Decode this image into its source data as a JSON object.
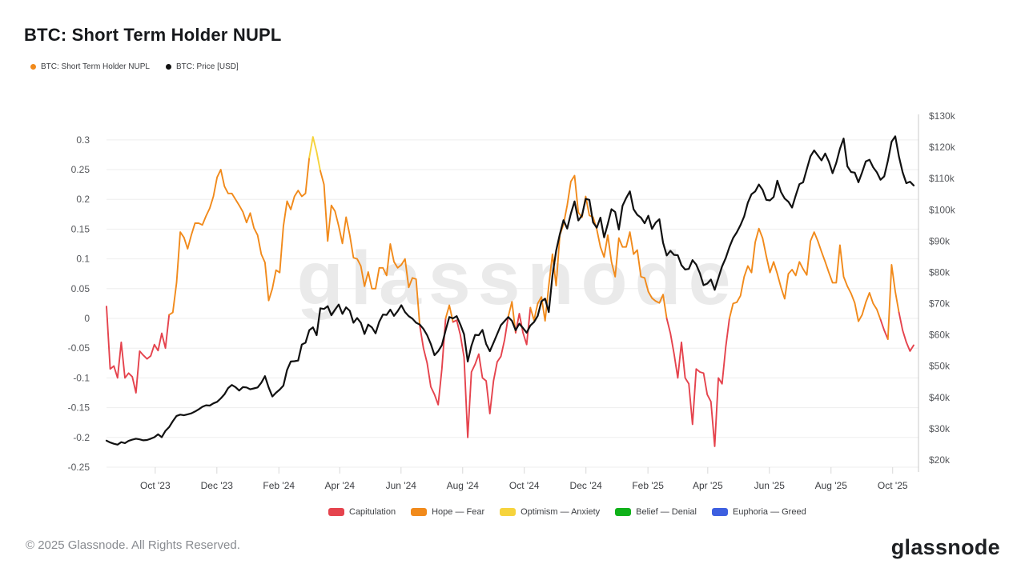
{
  "title": "BTC: Short Term Holder NUPL",
  "top_legend": [
    {
      "label": "BTC: Short Term Holder NUPL",
      "color": "#f18a1b"
    },
    {
      "label": "BTC: Price [USD]",
      "color": "#111111"
    }
  ],
  "bottom_legend": [
    {
      "label": "Capitulation",
      "color": "#e5434d"
    },
    {
      "label": "Hope — Fear",
      "color": "#f18a1b"
    },
    {
      "label": "Optimism — Anxiety",
      "color": "#f6d33c"
    },
    {
      "label": "Belief — Denial",
      "color": "#0fb119"
    },
    {
      "label": "Euphoria — Greed",
      "color": "#3d5fe0"
    }
  ],
  "watermark": "glassnode",
  "footer": "© 2025 Glassnode. All Rights Reserved.",
  "logo_text": "glassnode",
  "chart_data": {
    "type": "line",
    "x_axis": {
      "t_min": 2023.618,
      "t_max": 2025.805,
      "ticks": [
        {
          "t": 2023.75,
          "label": "Oct '23"
        },
        {
          "t": 2023.917,
          "label": "Dec '23"
        },
        {
          "t": 2024.085,
          "label": "Feb '24"
        },
        {
          "t": 2024.25,
          "label": "Apr '24"
        },
        {
          "t": 2024.416,
          "label": "Jun '24"
        },
        {
          "t": 2024.583,
          "label": "Aug '24"
        },
        {
          "t": 2024.75,
          "label": "Oct '24"
        },
        {
          "t": 2024.917,
          "label": "Dec '24"
        },
        {
          "t": 2025.085,
          "label": "Feb '25"
        },
        {
          "t": 2025.247,
          "label": "Apr '25"
        },
        {
          "t": 2025.414,
          "label": "Jun '25"
        },
        {
          "t": 2025.581,
          "label": "Aug '25"
        },
        {
          "t": 2025.748,
          "label": "Oct '25"
        }
      ]
    },
    "left_axis": {
      "min": -0.2581,
      "max": 0.3401,
      "ticks": [
        0.3,
        0.25,
        0.2,
        0.15,
        0.1,
        0.05,
        0,
        -0.05,
        -0.1,
        -0.15,
        -0.2,
        -0.25
      ]
    },
    "right_axis": {
      "min": 16.16,
      "max": 130,
      "unit": "$k",
      "ticks": [
        130,
        120,
        110,
        100,
        90,
        80,
        70,
        60,
        50,
        40,
        30,
        20
      ]
    },
    "regimes": [
      {
        "name": "Capitulation",
        "max": 0,
        "color": "#e5434d"
      },
      {
        "name": "Hope — Fear",
        "max": 0.25,
        "color": "#f18a1b"
      },
      {
        "name": "Optimism — Anxiety",
        "max": 0.5,
        "color": "#f6d33c"
      },
      {
        "name": "Belief — Denial",
        "max": 0.75,
        "color": "#0fb119"
      },
      {
        "name": "Euphoria — Greed",
        "max": 1,
        "color": "#3d5fe0"
      }
    ],
    "series": [
      {
        "name": "BTC: Short Term Holder NUPL",
        "axis": "left",
        "style": "regime",
        "t_start": 2023.618,
        "t_end": 2025.805,
        "values": [
          0.02,
          -0.085,
          -0.08,
          -0.1,
          -0.04,
          -0.1,
          -0.092,
          -0.098,
          -0.125,
          -0.055,
          -0.062,
          -0.068,
          -0.063,
          -0.044,
          -0.054,
          -0.025,
          -0.05,
          0.006,
          0.01,
          0.06,
          0.145,
          0.136,
          0.117,
          0.14,
          0.16,
          0.16,
          0.157,
          0.172,
          0.185,
          0.205,
          0.237,
          0.25,
          0.222,
          0.21,
          0.21,
          0.2,
          0.19,
          0.179,
          0.161,
          0.177,
          0.152,
          0.14,
          0.108,
          0.094,
          0.03,
          0.05,
          0.081,
          0.077,
          0.155,
          0.197,
          0.183,
          0.205,
          0.215,
          0.205,
          0.21,
          0.27,
          0.305,
          0.28,
          0.248,
          0.225,
          0.13,
          0.19,
          0.18,
          0.155,
          0.126,
          0.17,
          0.14,
          0.102,
          0.1,
          0.088,
          0.054,
          0.078,
          0.05,
          0.05,
          0.085,
          0.085,
          0.072,
          0.125,
          0.095,
          0.085,
          0.09,
          0.1,
          0.052,
          0.068,
          0.066,
          -0.012,
          -0.05,
          -0.075,
          -0.115,
          -0.128,
          -0.145,
          -0.085,
          0.0,
          0.022,
          -0.006,
          -0.003,
          -0.028,
          -0.065,
          -0.2,
          -0.09,
          -0.077,
          -0.06,
          -0.1,
          -0.105,
          -0.16,
          -0.105,
          -0.073,
          -0.064,
          -0.036,
          0.003,
          0.028,
          -0.024,
          0.008,
          -0.024,
          -0.044,
          0.018,
          -0.003,
          0.025,
          0.036,
          -0.004,
          0.055,
          0.108,
          0.055,
          0.14,
          0.158,
          0.19,
          0.23,
          0.24,
          0.178,
          0.17,
          0.205,
          0.173,
          0.17,
          0.15,
          0.12,
          0.103,
          0.14,
          0.095,
          0.07,
          0.135,
          0.12,
          0.12,
          0.145,
          0.108,
          0.115,
          0.07,
          0.068,
          0.045,
          0.034,
          0.029,
          0.026,
          0.04,
          0.0,
          -0.025,
          -0.06,
          -0.1,
          -0.04,
          -0.1,
          -0.11,
          -0.178,
          -0.085,
          -0.09,
          -0.092,
          -0.128,
          -0.14,
          -0.215,
          -0.1,
          -0.11,
          -0.048,
          0.0,
          0.025,
          0.027,
          0.038,
          0.07,
          0.088,
          0.077,
          0.128,
          0.151,
          0.135,
          0.105,
          0.077,
          0.095,
          0.075,
          0.052,
          0.033,
          0.075,
          0.082,
          0.072,
          0.095,
          0.083,
          0.073,
          0.13,
          0.145,
          0.13,
          0.112,
          0.095,
          0.077,
          0.06,
          0.06,
          0.123,
          0.07,
          0.054,
          0.042,
          0.026,
          -0.005,
          0.006,
          0.027,
          0.043,
          0.025,
          0.015,
          -0.002,
          -0.02,
          -0.035,
          0.09,
          0.045,
          0.01,
          -0.02,
          -0.04,
          -0.055,
          -0.045
        ]
      },
      {
        "name": "BTC: Price [USD]",
        "axis": "right",
        "style": "solid",
        "color": "#111111",
        "t_start": 2023.618,
        "t_end": 2025.805,
        "values": [
          26.2,
          25.6,
          25.2,
          24.9,
          25.7,
          25.4,
          26.1,
          26.5,
          26.8,
          26.6,
          26.3,
          26.4,
          26.8,
          27.3,
          28.2,
          27.3,
          29.3,
          30.5,
          32.4,
          34.1,
          34.5,
          34.3,
          34.6,
          34.9,
          35.5,
          36.2,
          37,
          37.5,
          37.4,
          38.1,
          38.6,
          39.7,
          41,
          43,
          44,
          43.3,
          42.2,
          43.3,
          43.2,
          42.6,
          42.9,
          43.2,
          44.7,
          46.8,
          43.2,
          40.3,
          41.5,
          42.5,
          43.8,
          48.8,
          51.5,
          51.6,
          51.8,
          56.9,
          57.5,
          61.5,
          62.4,
          59.9,
          68.5,
          68.3,
          69.2,
          66.3,
          68.1,
          69.7,
          66.7,
          68.8,
          67.7,
          63.9,
          65.4,
          63.9,
          60.3,
          63.3,
          62.4,
          60.5,
          64.2,
          66.5,
          66.4,
          68.1,
          66.1,
          67.6,
          69.5,
          67.3,
          66,
          65.2,
          63.9,
          63.3,
          61.9,
          59.9,
          57.1,
          53.5,
          54.8,
          56.7,
          61.5,
          65.7,
          65.3,
          66,
          63.3,
          60.2,
          51.5,
          56.5,
          60,
          59.9,
          61.6,
          57.1,
          54.8,
          57.5,
          60.3,
          63.1,
          64.4,
          65.7,
          64.5,
          61.5,
          63.6,
          62.2,
          60.7,
          63,
          64.1,
          66.1,
          70.7,
          71.6,
          67.3,
          79,
          86.9,
          92.2,
          96.7,
          94,
          98.8,
          102.7,
          96.6,
          98.2,
          103.5,
          103.2,
          96,
          94.3,
          97.5,
          91.2,
          95.5,
          100.2,
          99.3,
          93.7,
          101.3,
          103.8,
          105.9,
          100.2,
          98.4,
          97.5,
          95.7,
          98.1,
          93.9,
          95.9,
          97,
          89.5,
          85.4,
          86.9,
          85.6,
          85.5,
          82.3,
          80.9,
          81.1,
          83.9,
          82.5,
          79.7,
          75.9,
          76.4,
          77.7,
          74.4,
          78.2,
          81.9,
          84.6,
          88.1,
          91,
          92.8,
          95.1,
          97.9,
          102.3,
          105,
          105.9,
          108.1,
          106.4,
          103.2,
          103,
          104.1,
          109.3,
          105.7,
          103.6,
          102.6,
          100.7,
          104.6,
          108.2,
          108.8,
          113,
          117.1,
          119,
          117.4,
          115.8,
          118,
          115.4,
          111.7,
          115,
          119.5,
          122.8,
          113.9,
          112.1,
          111.9,
          108.8,
          112,
          115.5,
          116,
          113.6,
          112,
          109.6,
          110.7,
          115.7,
          121.8,
          123.5,
          117,
          112,
          108.5,
          109,
          107.8
        ]
      }
    ]
  }
}
